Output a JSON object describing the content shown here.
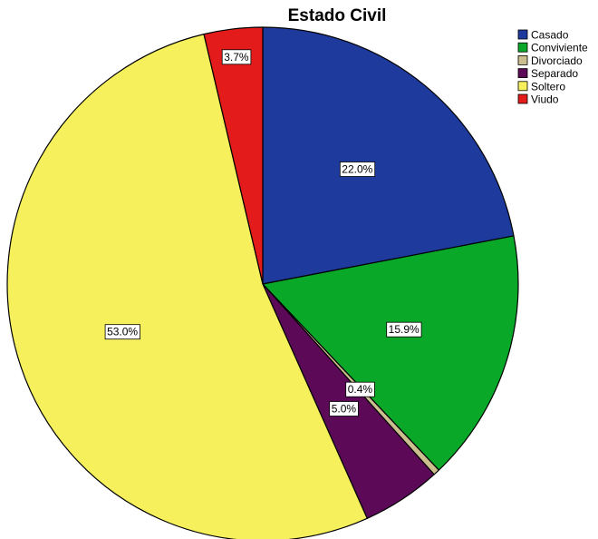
{
  "chart_data": {
    "type": "pie",
    "title": "Estado Civil",
    "start_angle_deg": 0,
    "direction": "clockwise",
    "legend_position": "top-right",
    "slices": [
      {
        "name": "Casado",
        "value": 22.0,
        "label": "22.0%",
        "color": "#1d3a9c"
      },
      {
        "name": "Conviviente",
        "value": 15.9,
        "label": "15.9%",
        "color": "#0aa829"
      },
      {
        "name": "Divorciado",
        "value": 0.4,
        "label": "0.4%",
        "color": "#cbbf8f"
      },
      {
        "name": "Separado",
        "value": 5.0,
        "label": "5.0%",
        "color": "#5c0a58"
      },
      {
        "name": "Soltero",
        "value": 53.0,
        "label": "53.0%",
        "color": "#f6f05c"
      },
      {
        "name": "Viudo",
        "value": 3.7,
        "label": "3.7%",
        "color": "#e41b1b"
      }
    ]
  }
}
